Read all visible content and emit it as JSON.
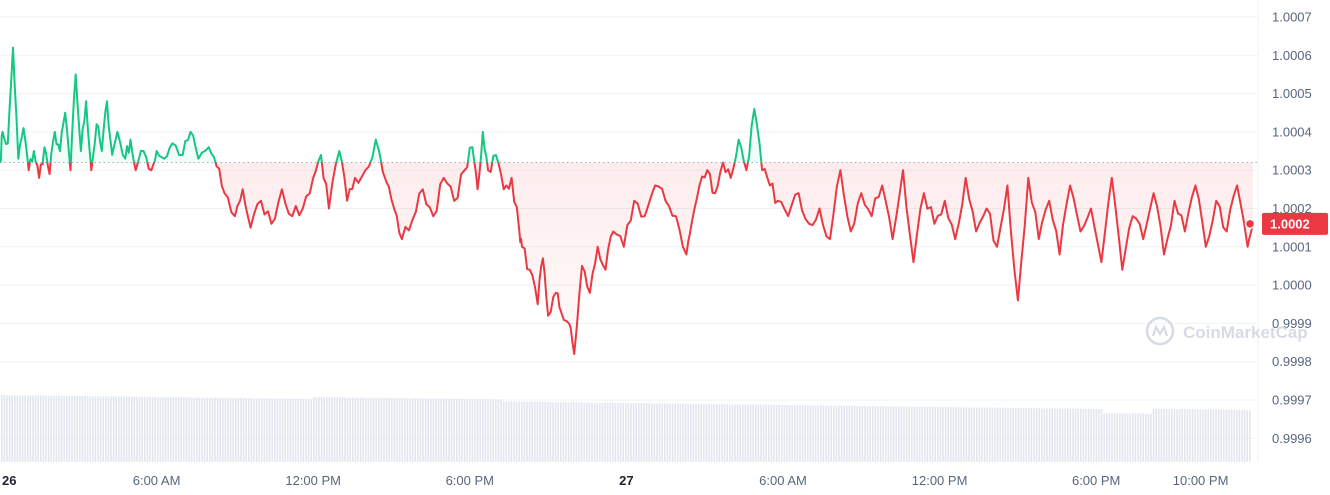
{
  "watermark": "CoinMarketCap",
  "colors": {
    "up": "#16c784",
    "down": "#ea3943",
    "volume": "#e2e6ef",
    "grid": "#eff2f5",
    "baseline": "#a6b0c3",
    "price_tag": "#ea3943"
  },
  "current_price_label": "1.0002",
  "chart_data": {
    "type": "line",
    "title": "",
    "baseline": 1.00032,
    "current_price": 1.00016,
    "ylim": [
      0.99955,
      1.00072
    ],
    "y_ticks": [
      "1.0007",
      "1.0006",
      "1.0005",
      "1.0004",
      "1.0003",
      "1.0002",
      "1.0001",
      "1.0000",
      "0.9999",
      "0.9998",
      "0.9997",
      "0.9996"
    ],
    "x_ticks": [
      {
        "label": "26",
        "bold": true,
        "h": 0
      },
      {
        "label": "6:00 AM",
        "bold": false,
        "h": 6
      },
      {
        "label": "12:00 PM",
        "bold": false,
        "h": 12
      },
      {
        "label": "6:00 PM",
        "bold": false,
        "h": 18
      },
      {
        "label": "27",
        "bold": true,
        "h": 24
      },
      {
        "label": "6:00 AM",
        "bold": false,
        "h": 30
      },
      {
        "label": "12:00 PM",
        "bold": false,
        "h": 36
      },
      {
        "label": "6:00 PM",
        "bold": false,
        "h": 42
      },
      {
        "label": "10:00 PM",
        "bold": false,
        "h": 46
      }
    ],
    "x_range_hours": [
      0,
      48.2
    ],
    "price_keypoints": [
      [
        0.0,
        1.00032
      ],
      [
        0.1,
        1.0004
      ],
      [
        0.3,
        1.00037
      ],
      [
        0.5,
        1.00062
      ],
      [
        0.7,
        1.00033
      ],
      [
        0.9,
        1.00041
      ],
      [
        1.1,
        1.0003
      ],
      [
        1.3,
        1.00035
      ],
      [
        1.5,
        1.00028
      ],
      [
        1.7,
        1.00036
      ],
      [
        1.9,
        1.00029
      ],
      [
        2.1,
        1.0004
      ],
      [
        2.3,
        1.00035
      ],
      [
        2.5,
        1.00045
      ],
      [
        2.7,
        1.0003
      ],
      [
        2.9,
        1.00055
      ],
      [
        3.1,
        1.00035
      ],
      [
        3.3,
        1.00048
      ],
      [
        3.5,
        1.0003
      ],
      [
        3.7,
        1.00042
      ],
      [
        3.9,
        1.00035
      ],
      [
        4.1,
        1.00048
      ],
      [
        4.3,
        1.00034
      ],
      [
        4.5,
        1.0004
      ],
      [
        4.8,
        1.00033
      ],
      [
        5.0,
        1.00038
      ],
      [
        5.2,
        1.0003
      ],
      [
        5.5,
        1.00035
      ],
      [
        5.8,
        1.0003
      ],
      [
        6.0,
        1.00035
      ],
      [
        6.3,
        1.00033
      ],
      [
        6.6,
        1.00037
      ],
      [
        7.0,
        1.00034
      ],
      [
        7.3,
        1.0004
      ],
      [
        7.6,
        1.00033
      ],
      [
        8.0,
        1.00036
      ],
      [
        8.3,
        1.00031
      ],
      [
        8.6,
        1.00024
      ],
      [
        9.0,
        1.00018
      ],
      [
        9.3,
        1.00025
      ],
      [
        9.6,
        1.00015
      ],
      [
        10.0,
        1.00022
      ],
      [
        10.4,
        1.00016
      ],
      [
        10.8,
        1.00025
      ],
      [
        11.2,
        1.00018
      ],
      [
        11.6,
        1.0002
      ],
      [
        12.0,
        1.00028
      ],
      [
        12.3,
        1.00034
      ],
      [
        12.6,
        1.0002
      ],
      [
        13.0,
        1.00035
      ],
      [
        13.3,
        1.00022
      ],
      [
        13.6,
        1.00028
      ],
      [
        14.0,
        1.0003
      ],
      [
        14.4,
        1.00038
      ],
      [
        14.8,
        1.00027
      ],
      [
        15.1,
        1.0002
      ],
      [
        15.4,
        1.00012
      ],
      [
        15.8,
        1.00017
      ],
      [
        16.2,
        1.00025
      ],
      [
        16.6,
        1.00018
      ],
      [
        17.0,
        1.00028
      ],
      [
        17.4,
        1.00022
      ],
      [
        17.8,
        1.0003
      ],
      [
        18.1,
        1.00036
      ],
      [
        18.3,
        1.00025
      ],
      [
        18.5,
        1.0004
      ],
      [
        18.7,
        1.0003
      ],
      [
        19.0,
        1.00034
      ],
      [
        19.3,
        1.00025
      ],
      [
        19.6,
        1.00028
      ],
      [
        19.9,
        1.00014
      ],
      [
        20.0,
        1.0001
      ],
      [
        20.3,
        1.00004
      ],
      [
        20.6,
        0.99995
      ],
      [
        20.8,
        1.00007
      ],
      [
        21.0,
        0.99992
      ],
      [
        21.3,
        0.99998
      ],
      [
        21.5,
        0.99993
      ],
      [
        21.8,
        0.9999
      ],
      [
        22.0,
        0.99982
      ],
      [
        22.3,
        1.00005
      ],
      [
        22.6,
        0.99998
      ],
      [
        22.9,
        1.0001
      ],
      [
        23.2,
        1.00004
      ],
      [
        23.5,
        1.00014
      ],
      [
        23.9,
        1.0001
      ],
      [
        24.3,
        1.00022
      ],
      [
        24.7,
        1.00018
      ],
      [
        25.1,
        1.00026
      ],
      [
        25.5,
        1.00022
      ],
      [
        25.9,
        1.00018
      ],
      [
        26.3,
        1.00008
      ],
      [
        26.5,
        1.00016
      ],
      [
        26.8,
        1.00026
      ],
      [
        27.1,
        1.0003
      ],
      [
        27.4,
        1.00024
      ],
      [
        27.7,
        1.00032
      ],
      [
        28.0,
        1.00028
      ],
      [
        28.3,
        1.00038
      ],
      [
        28.6,
        1.0003
      ],
      [
        28.9,
        1.00046
      ],
      [
        29.2,
        1.0003
      ],
      [
        29.5,
        1.00026
      ],
      [
        29.8,
        1.00022
      ],
      [
        30.2,
        1.00018
      ],
      [
        30.6,
        1.00024
      ],
      [
        31.0,
        1.00016
      ],
      [
        31.4,
        1.0002
      ],
      [
        31.8,
        1.00012
      ],
      [
        32.2,
        1.0003
      ],
      [
        32.6,
        1.00014
      ],
      [
        33.0,
        1.00024
      ],
      [
        33.4,
        1.00018
      ],
      [
        33.8,
        1.00026
      ],
      [
        34.2,
        1.00012
      ],
      [
        34.6,
        1.0003
      ],
      [
        35.0,
        1.00006
      ],
      [
        35.4,
        1.00024
      ],
      [
        35.8,
        1.00016
      ],
      [
        36.2,
        1.00022
      ],
      [
        36.6,
        1.00012
      ],
      [
        37.0,
        1.00028
      ],
      [
        37.4,
        1.00014
      ],
      [
        37.8,
        1.0002
      ],
      [
        38.2,
        1.0001
      ],
      [
        38.6,
        1.00026
      ],
      [
        39.0,
        0.99996
      ],
      [
        39.4,
        1.00028
      ],
      [
        39.8,
        1.00012
      ],
      [
        40.2,
        1.00022
      ],
      [
        40.6,
        1.00008
      ],
      [
        41.0,
        1.00026
      ],
      [
        41.4,
        1.00014
      ],
      [
        41.8,
        1.0002
      ],
      [
        42.2,
        1.00006
      ],
      [
        42.6,
        1.00028
      ],
      [
        43.0,
        1.00004
      ],
      [
        43.4,
        1.00018
      ],
      [
        43.8,
        1.00012
      ],
      [
        44.2,
        1.00024
      ],
      [
        44.6,
        1.00008
      ],
      [
        45.0,
        1.00022
      ],
      [
        45.4,
        1.00014
      ],
      [
        45.8,
        1.00026
      ],
      [
        46.2,
        1.0001
      ],
      [
        46.6,
        1.00022
      ],
      [
        47.0,
        1.00014
      ],
      [
        47.4,
        1.00026
      ],
      [
        47.8,
        1.0001
      ],
      [
        48.0,
        1.00016
      ]
    ]
  }
}
